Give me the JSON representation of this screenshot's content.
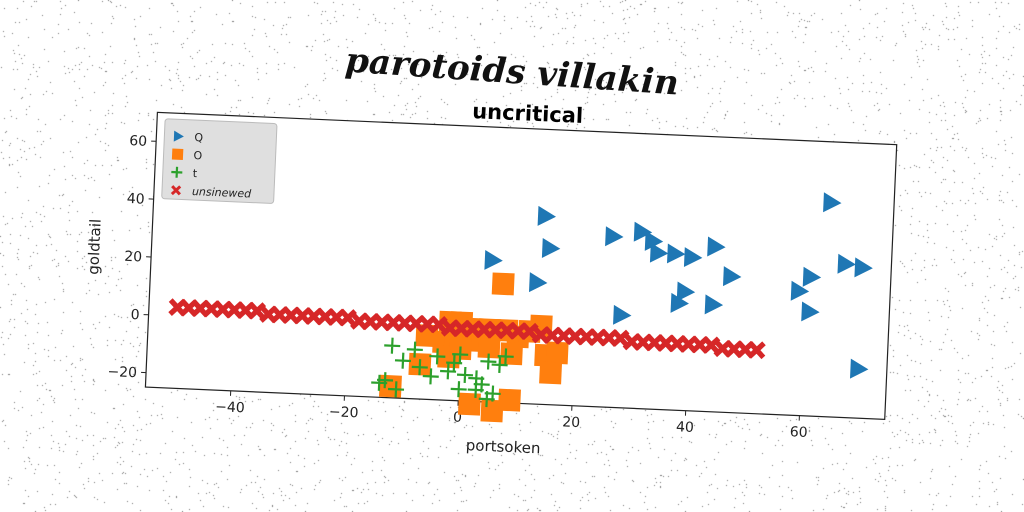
{
  "page_title": "parotoids villakin",
  "chart_data": {
    "type": "scatter",
    "title": "uncritical",
    "xlabel": "portsoken",
    "ylabel": "goldtail",
    "xlim": [
      -55,
      75
    ],
    "ylim": [
      -25,
      70
    ],
    "xticks": [
      -40,
      -20,
      0,
      20,
      40,
      60
    ],
    "yticks": [
      -20,
      0,
      20,
      40,
      60
    ],
    "tick_labels_x": [
      "−40",
      "−20",
      "0",
      "20",
      "40",
      "60"
    ],
    "tick_labels_y": [
      "−20",
      "0",
      "20",
      "40",
      "60"
    ],
    "grid": false,
    "legend_position": "top-left",
    "series": [
      {
        "name": "Q",
        "marker": "triangle-right",
        "color": "#1f77b4",
        "points": [
          [
            5,
            24
          ],
          [
            14,
            40
          ],
          [
            15,
            29
          ],
          [
            13,
            17
          ],
          [
            26,
            34
          ],
          [
            31,
            36
          ],
          [
            33,
            33
          ],
          [
            34,
            29
          ],
          [
            37,
            29
          ],
          [
            40,
            28
          ],
          [
            39,
            16
          ],
          [
            44,
            32
          ],
          [
            47,
            22
          ],
          [
            44,
            12
          ],
          [
            38,
            12
          ],
          [
            28,
            7
          ],
          [
            64,
            49
          ],
          [
            67,
            28
          ],
          [
            70,
            27
          ],
          [
            61,
            23
          ],
          [
            59,
            18
          ],
          [
            61,
            11
          ],
          [
            70,
            -8
          ]
        ]
      },
      {
        "name": "O",
        "marker": "square",
        "color": "#ff7f0e",
        "points": [
          [
            7,
            16
          ],
          [
            -2,
            2
          ],
          [
            0,
            2
          ],
          [
            2,
            0
          ],
          [
            3,
            -1
          ],
          [
            5,
            0
          ],
          [
            8,
            0
          ],
          [
            10,
            -2
          ],
          [
            14,
            2
          ],
          [
            12,
            0
          ],
          [
            -3,
            -5
          ],
          [
            -6,
            -3
          ],
          [
            -1,
            -4
          ],
          [
            2,
            -4
          ],
          [
            5,
            -6
          ],
          [
            9,
            -8
          ],
          [
            -7,
            -13
          ],
          [
            -2,
            -10
          ],
          [
            0,
            -7
          ],
          [
            15,
            -8
          ],
          [
            17,
            -7
          ],
          [
            16,
            -14
          ],
          [
            -12,
            -21
          ],
          [
            2,
            -26
          ],
          [
            6,
            -28
          ],
          [
            9,
            -24
          ]
        ]
      },
      {
        "name": "t",
        "marker": "plus",
        "color": "#2ca02c",
        "points": [
          [
            -12,
            -7
          ],
          [
            -8,
            -8
          ],
          [
            -10,
            -12
          ],
          [
            -4,
            -10
          ],
          [
            -7,
            -14
          ],
          [
            -5,
            -17
          ],
          [
            -1,
            -12
          ],
          [
            -2,
            -15
          ],
          [
            1,
            -16
          ],
          [
            3,
            -17
          ],
          [
            5,
            -11
          ],
          [
            7,
            -12
          ],
          [
            8,
            -9
          ],
          [
            4,
            -19
          ],
          [
            6,
            -22
          ],
          [
            -14,
            -20
          ],
          [
            -11,
            -22
          ],
          [
            -13,
            -19
          ],
          [
            0,
            -21
          ],
          [
            5,
            -24
          ],
          [
            3,
            -21
          ],
          [
            0,
            -9
          ]
        ]
      },
      {
        "name": "unsinewed",
        "marker": "x",
        "color": "#d62728",
        "points": [
          [
            -50,
            3
          ],
          [
            -48,
            3
          ],
          [
            -46,
            3
          ],
          [
            -44,
            3
          ],
          [
            -42,
            3
          ],
          [
            -40,
            3
          ],
          [
            -38,
            3
          ],
          [
            -36,
            3
          ],
          [
            -34,
            2
          ],
          [
            -32,
            2
          ],
          [
            -30,
            2
          ],
          [
            -28,
            2
          ],
          [
            -26,
            2
          ],
          [
            -24,
            2
          ],
          [
            -22,
            2
          ],
          [
            -20,
            2
          ],
          [
            -18,
            1
          ],
          [
            -16,
            1
          ],
          [
            -14,
            1
          ],
          [
            -12,
            1
          ],
          [
            -10,
            1
          ],
          [
            -8,
            1
          ],
          [
            -6,
            1
          ],
          [
            -4,
            1
          ],
          [
            -2,
            0
          ],
          [
            0,
            0
          ],
          [
            2,
            0
          ],
          [
            4,
            0
          ],
          [
            6,
            0
          ],
          [
            8,
            0
          ],
          [
            10,
            0
          ],
          [
            12,
            0
          ],
          [
            14,
            -1
          ],
          [
            16,
            -1
          ],
          [
            18,
            -1
          ],
          [
            20,
            -1
          ],
          [
            22,
            -1
          ],
          [
            24,
            -1
          ],
          [
            26,
            -1
          ],
          [
            28,
            -1
          ],
          [
            30,
            -2
          ],
          [
            32,
            -2
          ],
          [
            34,
            -2
          ],
          [
            36,
            -2
          ],
          [
            38,
            -2
          ],
          [
            40,
            -2
          ],
          [
            42,
            -2
          ],
          [
            44,
            -2
          ],
          [
            46,
            -3
          ],
          [
            48,
            -3
          ],
          [
            50,
            -3
          ],
          [
            52,
            -3
          ]
        ]
      }
    ]
  }
}
